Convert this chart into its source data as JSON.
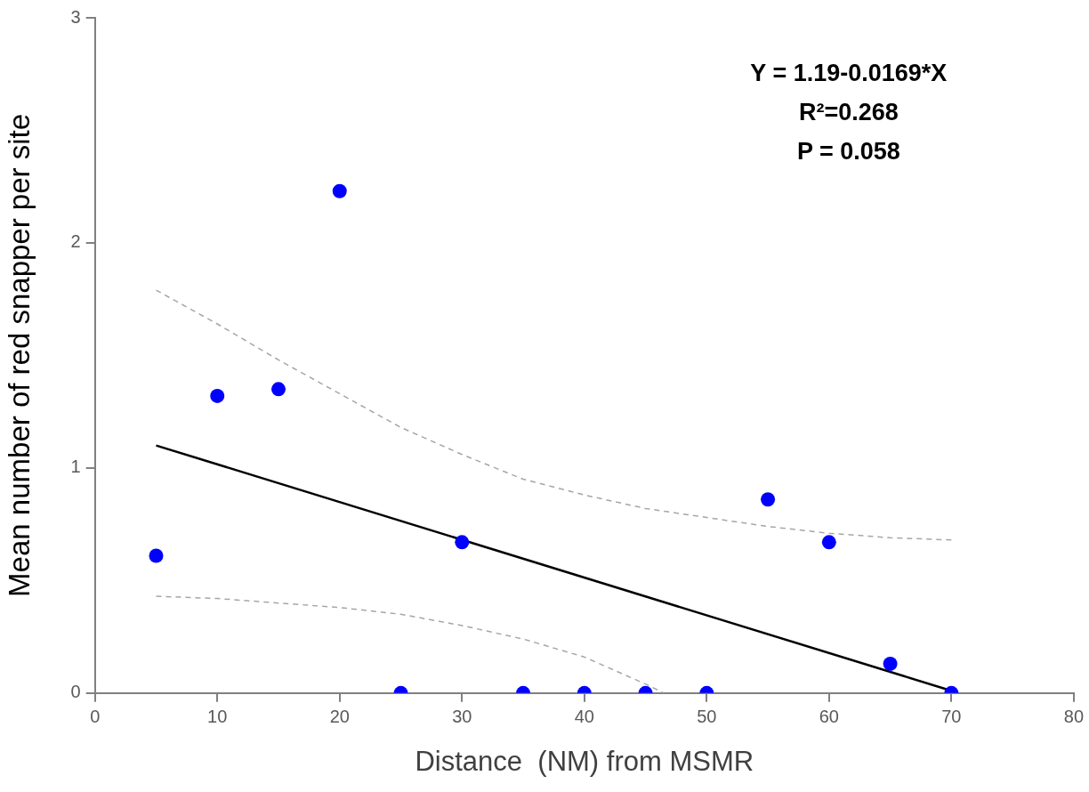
{
  "chart_data": {
    "type": "scatter",
    "xlabel": "Distance  (NM) from MSMR",
    "ylabel": "Mean number of red snapper per site",
    "xlim": [
      0,
      80
    ],
    "xticks": [
      0,
      10,
      20,
      30,
      40,
      50,
      60,
      70,
      80
    ],
    "ylim": [
      0,
      3
    ],
    "yticks": [
      0,
      1,
      2,
      3
    ],
    "grid": false,
    "legend": false,
    "series": [
      {
        "type": "scatter",
        "marker": "circle",
        "color": "#0000ff",
        "x": [
          5,
          10,
          15,
          20,
          25,
          30,
          35,
          40,
          45,
          50,
          55,
          60,
          65,
          70
        ],
        "values": [
          0.61,
          1.32,
          1.35,
          2.23,
          0,
          0.67,
          0,
          0,
          0,
          0,
          0.86,
          0.67,
          0.13,
          0
        ]
      },
      {
        "type": "line",
        "marker": "none",
        "line_style": "solid",
        "color": "#000000",
        "x": [
          5,
          70
        ],
        "values": [
          1.1,
          0.01
        ]
      },
      {
        "type": "line",
        "marker": "none",
        "line_style": "dashed",
        "color": "#a6a6a6",
        "x": [
          5,
          10,
          15,
          20,
          25,
          30,
          35,
          40,
          45,
          50,
          55,
          60,
          65,
          70
        ],
        "values": [
          1.79,
          1.64,
          1.48,
          1.33,
          1.18,
          1.06,
          0.95,
          0.88,
          0.82,
          0.78,
          0.74,
          0.71,
          0.69,
          0.68
        ]
      },
      {
        "type": "line",
        "marker": "none",
        "line_style": "dashed",
        "color": "#a6a6a6",
        "x": [
          5,
          10,
          15,
          20,
          25,
          30,
          35,
          40,
          45,
          46.5
        ],
        "values": [
          0.43,
          0.42,
          0.4,
          0.38,
          0.35,
          0.3,
          0.24,
          0.16,
          0.04,
          0
        ]
      }
    ],
    "annotations": [
      "Y = 1.19-0.0169*X",
      "R²=0.268",
      "P = 0.058"
    ]
  }
}
